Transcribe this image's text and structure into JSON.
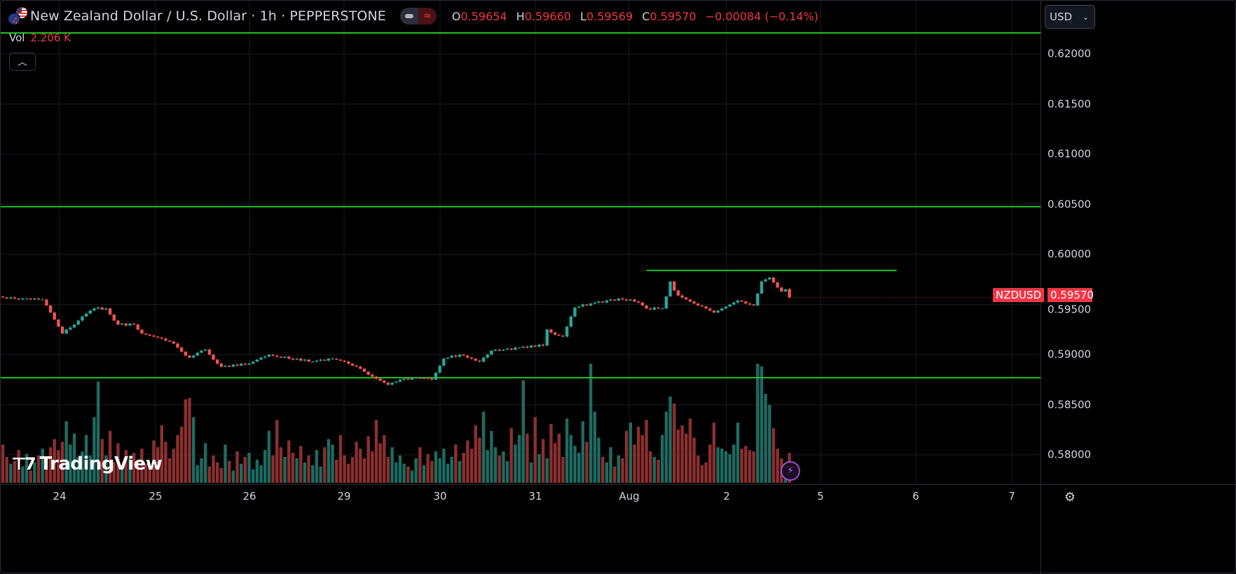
{
  "header": {
    "title": "New Zealand Dollar / U.S. Dollar · 1h · PEPPERSTONE",
    "ohlc": {
      "o_label": "O",
      "o": "0.59654",
      "h_label": "H",
      "h": "0.59660",
      "l_label": "L",
      "l": "0.59569",
      "c_label": "C",
      "c": "0.59570",
      "change": "−0.00084 (−0.14%)"
    },
    "vol_label": "Vol",
    "vol_value": "2.206 K",
    "collapse_icon": "chevron-up-icon"
  },
  "currency_select": {
    "value": "USD",
    "icon": "chevron-down-icon"
  },
  "symbol_label": "NZDUSD",
  "last_price": "0.59570",
  "logo_text": "TradingView",
  "colors": {
    "up": "#26a69a",
    "down": "#ef5350",
    "vol_up": "#1d6b61",
    "vol_down": "#8c2f2f",
    "hline": "#22c322",
    "last": "#f23645"
  },
  "chart_data": {
    "type": "candlestick",
    "interval": "1h",
    "price_axis": {
      "ticks": [
        "0.62000",
        "0.61500",
        "0.61000",
        "0.60500",
        "0.60000",
        "0.59500",
        "0.59000",
        "0.58500",
        "0.58000"
      ],
      "range": [
        0.5775,
        0.6236
      ]
    },
    "time_axis": {
      "ticks": [
        "24",
        "25",
        "26",
        "29",
        "30",
        "31",
        "Aug",
        "2",
        "5",
        "6",
        "7"
      ]
    },
    "horizontal_lines": [
      0.6221,
      0.60476,
      0.5877
    ],
    "trend_line": {
      "price": 0.5984,
      "from_bar": 162,
      "to_bar": 225
    },
    "last_open": 0.59654,
    "closes": [
      0.5957,
      0.5956,
      0.5957,
      0.5956,
      0.5955,
      0.5956,
      0.5956,
      0.5955,
      0.5956,
      0.5955,
      0.5955,
      0.5949,
      0.5942,
      0.5935,
      0.5928,
      0.5921,
      0.5925,
      0.5927,
      0.593,
      0.5934,
      0.5938,
      0.5941,
      0.5944,
      0.5946,
      0.5947,
      0.5945,
      0.5946,
      0.594,
      0.5934,
      0.593,
      0.5931,
      0.5929,
      0.5931,
      0.593,
      0.5925,
      0.5921,
      0.592,
      0.5919,
      0.5918,
      0.5917,
      0.5916,
      0.5914,
      0.5913,
      0.5911,
      0.5907,
      0.5903,
      0.5899,
      0.5897,
      0.5899,
      0.5902,
      0.5904,
      0.5905,
      0.59,
      0.5895,
      0.5891,
      0.5888,
      0.5889,
      0.5888,
      0.589,
      0.5889,
      0.5891,
      0.589,
      0.5891,
      0.5893,
      0.5895,
      0.5897,
      0.5898,
      0.59,
      0.5899,
      0.5898,
      0.5897,
      0.5898,
      0.5896,
      0.5895,
      0.5896,
      0.5894,
      0.5895,
      0.5893,
      0.5893,
      0.5894,
      0.5895,
      0.5894,
      0.5896,
      0.5896,
      0.5895,
      0.5894,
      0.5893,
      0.5891,
      0.5889,
      0.5888,
      0.5886,
      0.5883,
      0.588,
      0.5878,
      0.5876,
      0.5874,
      0.5872,
      0.587,
      0.5872,
      0.5873,
      0.5875,
      0.5876,
      0.5875,
      0.5877,
      0.5877,
      0.5876,
      0.5877,
      0.5876,
      0.5875,
      0.5882,
      0.5889,
      0.5896,
      0.5897,
      0.5899,
      0.5898,
      0.59,
      0.5899,
      0.5897,
      0.5896,
      0.5894,
      0.5893,
      0.5897,
      0.59,
      0.5904,
      0.5905,
      0.5904,
      0.5905,
      0.5906,
      0.5905,
      0.5907,
      0.5907,
      0.5908,
      0.5907,
      0.5909,
      0.5908,
      0.591,
      0.5909,
      0.5925,
      0.5922,
      0.592,
      0.5919,
      0.5918,
      0.5928,
      0.5938,
      0.5947,
      0.5948,
      0.595,
      0.5949,
      0.5951,
      0.5952,
      0.5953,
      0.5952,
      0.5954,
      0.5955,
      0.5954,
      0.5956,
      0.5955,
      0.5954,
      0.5955,
      0.5953,
      0.5952,
      0.5949,
      0.5946,
      0.5945,
      0.5947,
      0.5946,
      0.5946,
      0.5958,
      0.5973,
      0.5964,
      0.5959,
      0.5957,
      0.5955,
      0.5953,
      0.5951,
      0.5949,
      0.5948,
      0.5946,
      0.5944,
      0.5942,
      0.5944,
      0.5946,
      0.5948,
      0.595,
      0.5952,
      0.5954,
      0.5953,
      0.5951,
      0.595,
      0.5949,
      0.5961,
      0.5973,
      0.5975,
      0.5977,
      0.5972,
      0.5967,
      0.5963,
      0.5965,
      0.5957
    ],
    "volumes_k": [
      2.8,
      1.9,
      1.4,
      1.6,
      2.4,
      1.2,
      2.1,
      0.9,
      1.5,
      2.0,
      2.5,
      1.8,
      2.6,
      3.2,
      2.4,
      3.0,
      4.5,
      2.8,
      3.6,
      1.9,
      2.3,
      3.5,
      2.0,
      4.8,
      7.4,
      3.2,
      2.0,
      3.8,
      1.5,
      2.9,
      1.2,
      2.4,
      1.8,
      2.2,
      1.6,
      2.5,
      1.4,
      1.0,
      3.1,
      2.6,
      4.2,
      3.0,
      1.8,
      2.5,
      3.5,
      4.1,
      6.1,
      6.2,
      4.8,
      1.3,
      1.8,
      2.9,
      1.2,
      2.0,
      1.5,
      1.1,
      2.8,
      1.6,
      0.9,
      2.3,
      1.4,
      1.9,
      2.2,
      1.0,
      1.7,
      1.3,
      2.4,
      3.8,
      2.0,
      4.6,
      2.6,
      1.9,
      3.1,
      2.2,
      1.8,
      2.7,
      1.5,
      2.0,
      1.3,
      2.4,
      1.2,
      2.6,
      3.2,
      2.8,
      1.7,
      3.5,
      2.0,
      1.4,
      1.9,
      3.0,
      2.5,
      1.8,
      3.4,
      2.3,
      4.6,
      2.9,
      3.5,
      1.9,
      2.6,
      1.5,
      2.0,
      1.4,
      1.2,
      0.9,
      1.8,
      2.6,
      1.3,
      2.1,
      1.6,
      2.3,
      1.8,
      2.5,
      1.4,
      1.9,
      2.8,
      1.6,
      2.2,
      3.1,
      2.5,
      4.2,
      3.3,
      5.2,
      2.4,
      3.8,
      2.6,
      2.0,
      2.3,
      1.6,
      4.0,
      2.8,
      3.5,
      7.5,
      3.6,
      1.5,
      4.8,
      2.1,
      3.2,
      1.8,
      4.3,
      2.9,
      3.6,
      1.9,
      4.7,
      3.5,
      2.7,
      2.2,
      4.5,
      3.0,
      8.7,
      5.2,
      3.3,
      1.9,
      1.5,
      2.6,
      1.2,
      2.0,
      1.8,
      3.8,
      4.4,
      2.8,
      4.1,
      3.5,
      4.6,
      2.3,
      1.9,
      1.7,
      3.5,
      5.2,
      6.3,
      5.8,
      3.9,
      4.2,
      3.6,
      4.7,
      3.3,
      2.0,
      1.3,
      1.5,
      2.8,
      4.4,
      2.6,
      2.5,
      2.3,
      2.1,
      2.8,
      4.4,
      2.5,
      2.7,
      2.4,
      2.3,
      8.7,
      8.5,
      6.5,
      5.7,
      4.0,
      2.5,
      1.8,
      1.2,
      2.2
    ]
  }
}
